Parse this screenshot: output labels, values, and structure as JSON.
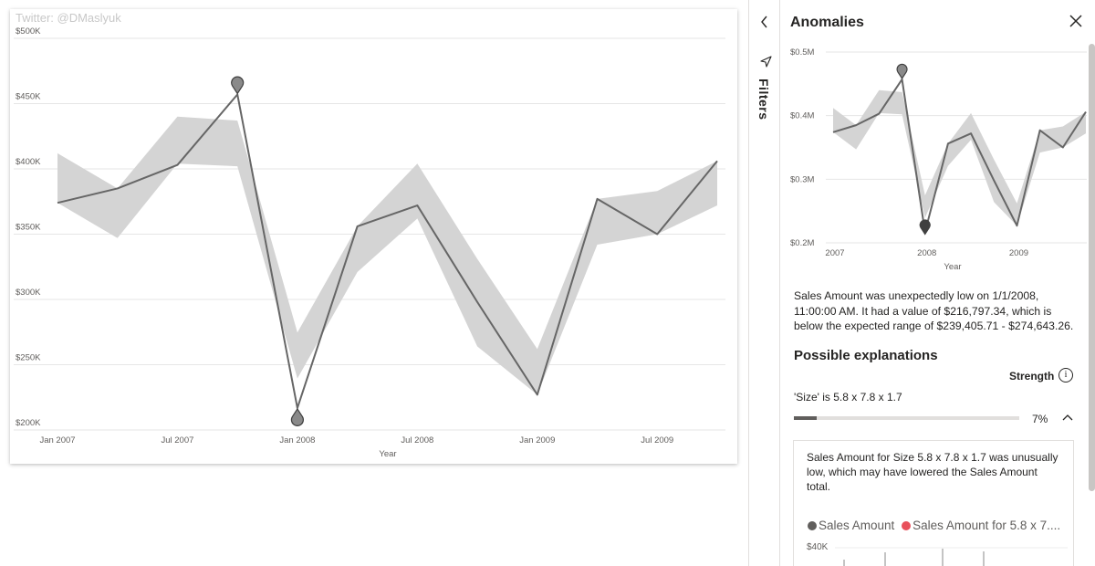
{
  "watermark": "Twitter: @DMaslyuk",
  "main_chart": {
    "title": "",
    "xlabel": "Year",
    "y_ticks": [
      "$500K",
      "$450K",
      "$400K",
      "$350K",
      "$300K",
      "$250K",
      "$200K"
    ],
    "y_tick_values": [
      500000,
      450000,
      400000,
      350000,
      300000,
      250000,
      200000
    ],
    "x_ticks": [
      "Jan 2007",
      "Jul 2007",
      "Jan 2008",
      "Jul 2008",
      "Jan 2009",
      "Jul 2009"
    ]
  },
  "chart_data": [
    {
      "type": "line",
      "title": "",
      "xlabel": "Year",
      "ylabel": "",
      "ylim": [
        200000,
        500000
      ],
      "x": [
        "2007-01",
        "2007-04",
        "2007-07",
        "2007-10",
        "2008-01",
        "2008-04",
        "2008-07",
        "2008-10",
        "2009-01",
        "2009-04",
        "2009-07",
        "2009-10"
      ],
      "series": [
        {
          "values": [
            374000,
            385000,
            403000,
            457000,
            216797,
            356000,
            372000,
            298000,
            227000,
            377000,
            350000,
            406000
          ]
        }
      ],
      "expected_range": {
        "lower": [
          374000,
          347000,
          404000,
          402000,
          239406,
          321000,
          362000,
          264000,
          227000,
          342000,
          350000,
          372000
        ],
        "upper": [
          412000,
          385000,
          440000,
          437000,
          274643,
          356000,
          404000,
          331000,
          262000,
          377000,
          383000,
          406000
        ]
      },
      "anomalies": [
        {
          "x": "2007-10",
          "direction": "high"
        },
        {
          "x": "2008-01",
          "direction": "low"
        }
      ],
      "grid": true,
      "legend": "none"
    },
    {
      "type": "line",
      "title": "",
      "xlabel": "Year",
      "ylabel": "",
      "ylim": [
        200000,
        500000
      ],
      "y_ticks": [
        "$0.5M",
        "$0.4M",
        "$0.3M",
        "$0.2M"
      ],
      "x_ticks": [
        "2007",
        "2008",
        "2009"
      ],
      "selected_anomaly": "2008-01"
    }
  ],
  "filters": {
    "label": "Filters",
    "collapse_icon": "chevron-left-icon",
    "filter_icon": "funnel-icon"
  },
  "pane": {
    "title": "Anomalies",
    "close_icon": "close-icon",
    "mini_chart": {
      "y_ticks": [
        "$0.5M",
        "$0.4M",
        "$0.3M",
        "$0.2M"
      ],
      "x_ticks": [
        "2007",
        "2008",
        "2009"
      ],
      "xlabel": "Year"
    },
    "description": "Sales Amount was unexpectedly low on 1/1/2008, 11:00:00 AM. It had a value of $216,797.34, which is below the expected range of $239,405.71 - $274,643.26.",
    "explanations_title": "Possible explanations",
    "strength_label": "Strength",
    "info_icon": "i",
    "factor": {
      "label": "'Size' is 5.8 x 7.8 x 1.7",
      "strength_pct": "7%",
      "strength_value": 0.07,
      "detail": "Sales Amount for Size 5.8 x 7.8 x 1.7 was unusually low, which may have lowered the Sales Amount total.",
      "legend": [
        {
          "label": "Sales Amount",
          "color": "#605e5c"
        },
        {
          "label": "Sales Amount for 5.8  x 7....",
          "color": "#e8505b"
        }
      ],
      "y_tick": "$40K"
    }
  },
  "colors": {
    "line": "#666666",
    "band": "#d4d4d4",
    "grid": "#e6e6e6",
    "marker": "#8a8a8a",
    "low_marker": "#404040",
    "accent_red": "#e8505b"
  }
}
